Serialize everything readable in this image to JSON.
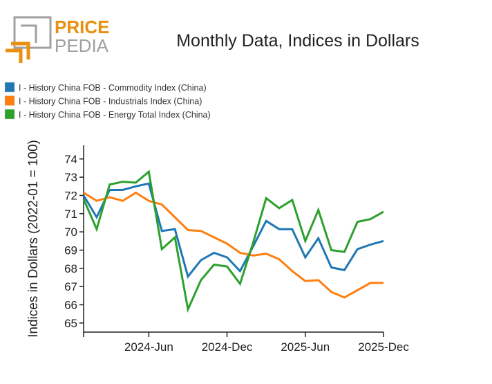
{
  "logo": {
    "line1": "PRICE",
    "line2": "PEDIA",
    "accent": "#e8900f",
    "gray": "#a0a0a0"
  },
  "chart_data": {
    "type": "line",
    "title": "Monthly Data, Indices in Dollars",
    "xlabel": "",
    "ylabel": "Indices in Dollars (2022-01 = 100)",
    "x": [
      "2024-01",
      "2024-02",
      "2024-03",
      "2024-04",
      "2024-05",
      "2024-06",
      "2024-07",
      "2024-08",
      "2024-09",
      "2024-10",
      "2024-11",
      "2024-12",
      "2025-01",
      "2025-02",
      "2025-03",
      "2025-04",
      "2025-05",
      "2025-06",
      "2025-07",
      "2025-08",
      "2025-09",
      "2025-10",
      "2025-11",
      "2025-12"
    ],
    "xticks": [
      {
        "at": "2024-01",
        "label": ""
      },
      {
        "at": "2024-06",
        "label": "2024-Jun"
      },
      {
        "at": "2024-12",
        "label": "2024-Dec"
      },
      {
        "at": "2025-06",
        "label": "2025-Jun"
      },
      {
        "at": "2025-12",
        "label": "2025-Dec"
      }
    ],
    "yticks": [
      65,
      66,
      67,
      68,
      69,
      70,
      71,
      72,
      73,
      74
    ],
    "ylim": [
      64.5,
      74.75
    ],
    "grid": false,
    "legend_position": "top-left",
    "series": [
      {
        "name": "I - History China FOB - Commodity Index (China)",
        "color": "#1f77b4",
        "values": [
          72.0,
          70.8,
          72.3,
          72.3,
          72.5,
          72.65,
          70.05,
          70.15,
          67.55,
          68.45,
          68.85,
          68.6,
          67.85,
          69.2,
          70.6,
          70.15,
          70.15,
          68.6,
          69.65,
          68.05,
          67.9,
          69.05,
          69.3,
          69.5
        ]
      },
      {
        "name": "I - History China FOB - Industrials Index (China)",
        "color": "#ff7f0e",
        "values": [
          72.15,
          71.7,
          71.9,
          71.7,
          72.15,
          71.7,
          71.5,
          70.8,
          70.1,
          70.05,
          69.7,
          69.35,
          68.85,
          68.7,
          68.8,
          68.5,
          67.85,
          67.3,
          67.35,
          66.7,
          66.4,
          66.8,
          67.2,
          67.2
        ]
      },
      {
        "name": "I - History China FOB - Energy Total Index (China)",
        "color": "#2ca02c",
        "values": [
          71.8,
          70.15,
          72.6,
          72.75,
          72.7,
          73.3,
          69.05,
          69.7,
          65.75,
          67.35,
          68.2,
          68.1,
          67.15,
          69.4,
          71.85,
          71.3,
          71.75,
          69.5,
          71.2,
          69.0,
          68.9,
          70.55,
          70.7,
          71.1
        ]
      }
    ]
  }
}
